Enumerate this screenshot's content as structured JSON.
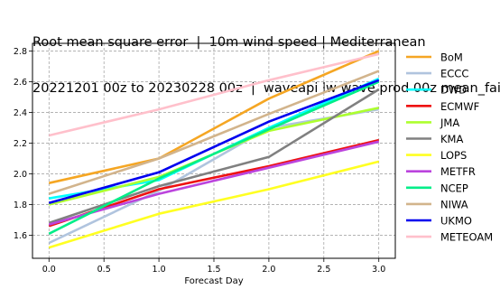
{
  "chart_data": {
    "type": "line",
    "title_lines": [
      "Root mean square error  |  10m wind speed | Mediterranean",
      "20221201 00z to 20230228 00z  |  waveapi lw wave prod 00z mean_fair"
    ],
    "xlabel": "Forecast Day",
    "ylabel": "",
    "x": [
      0,
      1,
      2,
      3
    ],
    "xlim": [
      -0.15,
      3.15
    ],
    "ylim": [
      1.45,
      2.85
    ],
    "xticks": [
      "0.0",
      "0.5",
      "1.0",
      "1.5",
      "2.0",
      "2.5",
      "3.0"
    ],
    "yticks": [
      "1.6",
      "1.8",
      "2.0",
      "2.2",
      "2.4",
      "2.6",
      "2.8"
    ],
    "grid": true,
    "legend_position": "right-outside",
    "series": [
      {
        "name": "BoM",
        "color": "#f5a623",
        "values": [
          1.94,
          2.1,
          2.49,
          2.8
        ]
      },
      {
        "name": "ECCC",
        "color": "#b0c4de",
        "values": [
          1.55,
          1.89,
          2.3,
          2.42
        ]
      },
      {
        "name": "DWD",
        "color": "#00ffff",
        "values": [
          1.84,
          1.96,
          2.3,
          2.62
        ]
      },
      {
        "name": "ECMWF",
        "color": "#ee1111",
        "values": [
          1.66,
          1.9,
          2.05,
          2.22
        ]
      },
      {
        "name": "JMA",
        "color": "#adff2f",
        "values": [
          1.8,
          1.98,
          2.28,
          2.43
        ]
      },
      {
        "name": "KMA",
        "color": "#808080",
        "values": [
          1.68,
          1.92,
          2.11,
          2.55
        ]
      },
      {
        "name": "LOPS",
        "color": "#ffff22",
        "values": [
          1.52,
          1.74,
          1.9,
          2.08
        ]
      },
      {
        "name": "METFR",
        "color": "#bb44dd",
        "values": [
          1.67,
          1.87,
          2.04,
          2.21
        ]
      },
      {
        "name": "NCEP",
        "color": "#00ee88",
        "values": [
          1.61,
          1.97,
          2.29,
          2.6
        ]
      },
      {
        "name": "NIWA",
        "color": "#d2b48c",
        "values": [
          1.87,
          2.1,
          2.39,
          2.67
        ]
      },
      {
        "name": "UKMO",
        "color": "#0000ee",
        "values": [
          1.81,
          2.01,
          2.34,
          2.61
        ]
      },
      {
        "name": "METEOAM",
        "color": "#ffc0cb",
        "values": [
          2.25,
          2.42,
          2.61,
          2.78
        ]
      }
    ]
  }
}
